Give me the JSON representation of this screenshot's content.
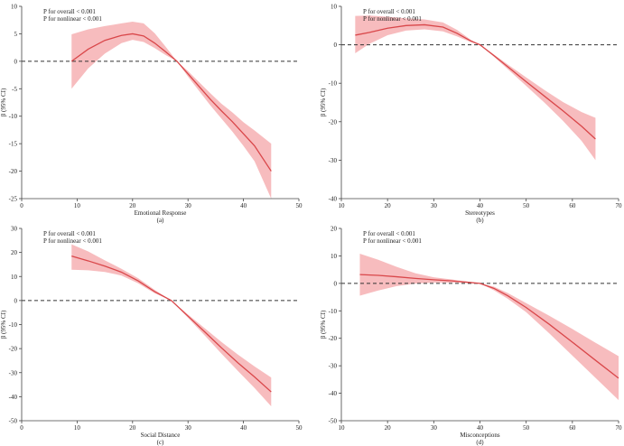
{
  "figure": {
    "description_hidden": false
  },
  "chart_data": [
    {
      "type": "line",
      "panel_label": "(a)",
      "xlabel": "Emotional Response",
      "ylabel": "β (95% CI)",
      "xlim": [
        0,
        50
      ],
      "ylim": [
        -25,
        10
      ],
      "xticks": [
        0,
        10,
        20,
        30,
        40,
        50
      ],
      "yticks": [
        -25,
        -20,
        -15,
        -10,
        -5,
        0,
        5,
        10
      ],
      "reference_line": 0,
      "annotations": [
        "P for overall < 0.001",
        "P for nonlinear < 0.001"
      ],
      "series": [
        {
          "name": "β",
          "x": [
            9,
            12,
            15,
            18,
            20,
            22,
            24,
            26,
            28,
            30,
            32,
            34,
            36,
            38,
            40,
            42,
            45
          ],
          "y": [
            0,
            2.2,
            3.8,
            4.7,
            5.0,
            4.6,
            3.3,
            1.7,
            0,
            -2.3,
            -4.6,
            -6.9,
            -9.0,
            -11.0,
            -13.2,
            -15.4,
            -20.0
          ],
          "lower": [
            -5,
            -1.3,
            1.4,
            3.3,
            3.9,
            3.5,
            2.4,
            1.1,
            0,
            -2.8,
            -5.4,
            -8.0,
            -10.4,
            -12.8,
            -15.4,
            -18.2,
            -25.0
          ],
          "upper": [
            4.9,
            5.8,
            6.4,
            6.9,
            7.2,
            6.9,
            5.1,
            2.6,
            0,
            -1.8,
            -3.8,
            -5.8,
            -7.7,
            -9.3,
            -11.1,
            -12.6,
            -15.0
          ]
        }
      ]
    },
    {
      "type": "line",
      "panel_label": "(b)",
      "xlabel": "Stereotypes",
      "ylabel": "β (95% CI)",
      "xlim": [
        10,
        70
      ],
      "ylim": [
        -40,
        10
      ],
      "xticks": [
        10,
        20,
        30,
        40,
        50,
        60,
        70
      ],
      "yticks": [
        -40,
        -30,
        -20,
        -10,
        0,
        10
      ],
      "reference_line": 0,
      "annotations": [
        "P for overall < 0.001",
        "P for nonlinear < 0.001"
      ],
      "series": [
        {
          "name": "β",
          "x": [
            13,
            16,
            20,
            24,
            28,
            32,
            35,
            38,
            40,
            43,
            46,
            50,
            54,
            58,
            62,
            65
          ],
          "y": [
            2.5,
            3.2,
            4.3,
            5.0,
            5.2,
            4.6,
            3.0,
            1.0,
            0,
            -2.8,
            -5.7,
            -9.6,
            -13.4,
            -17.2,
            -21.2,
            -24.5
          ],
          "lower": [
            -2.2,
            0.2,
            2.5,
            3.7,
            4.0,
            3.5,
            2.2,
            0.7,
            0,
            -3.1,
            -6.3,
            -10.7,
            -15.1,
            -19.8,
            -25.0,
            -30.0
          ],
          "upper": [
            7.5,
            7.6,
            7.3,
            6.9,
            6.6,
            5.8,
            3.9,
            1.3,
            0,
            -2.5,
            -5.1,
            -8.5,
            -11.8,
            -14.9,
            -17.5,
            -19.0
          ]
        }
      ]
    },
    {
      "type": "line",
      "panel_label": "(c)",
      "xlabel": "Social Distance",
      "ylabel": "β (95% CI)",
      "xlim": [
        0,
        50
      ],
      "ylim": [
        -50,
        30
      ],
      "xticks": [
        0,
        10,
        20,
        30,
        40,
        50
      ],
      "yticks": [
        -50,
        -40,
        -30,
        -20,
        -10,
        0,
        10,
        20,
        30
      ],
      "reference_line": 0,
      "annotations": [
        "P for overall < 0.001",
        "P for nonlinear < 0.001"
      ],
      "series": [
        {
          "name": "β",
          "x": [
            9,
            12,
            15,
            18,
            21,
            24,
            27,
            30,
            33,
            36,
            39,
            42,
            45
          ],
          "y": [
            18.5,
            16.5,
            14.3,
            11.8,
            8.2,
            3.7,
            0,
            -6.5,
            -13.0,
            -19.6,
            -25.9,
            -31.8,
            -38.0
          ],
          "lower": [
            12.8,
            12.6,
            11.9,
            10.4,
            7.2,
            3.0,
            0,
            -7.2,
            -14.5,
            -22.0,
            -29.3,
            -36.4,
            -44.0
          ],
          "upper": [
            23.4,
            20.4,
            16.7,
            13.2,
            9.3,
            4.4,
            0,
            -5.8,
            -11.5,
            -17.2,
            -22.5,
            -27.4,
            -32.0
          ]
        }
      ]
    },
    {
      "type": "line",
      "panel_label": "(d)",
      "xlabel": "Misconceptions",
      "ylabel": "β (95% CI)",
      "xlim": [
        10,
        70
      ],
      "ylim": [
        -50,
        20
      ],
      "xticks": [
        10,
        20,
        30,
        40,
        50,
        60,
        70
      ],
      "yticks": [
        -50,
        -40,
        -30,
        -20,
        -10,
        0,
        10,
        20
      ],
      "reference_line": 0,
      "annotations": [
        "P for overall < 0.001",
        "P for nonlinear < 0.001"
      ],
      "series": [
        {
          "name": "β",
          "x": [
            14,
            18,
            22,
            26,
            30,
            34,
            38,
            40,
            43,
            46,
            50,
            55,
            60,
            65,
            70
          ],
          "y": [
            3.2,
            2.9,
            2.4,
            1.8,
            1.3,
            0.9,
            0.3,
            0,
            -1.8,
            -4.5,
            -8.8,
            -14.9,
            -21.4,
            -28.0,
            -34.5
          ],
          "lower": [
            -4.5,
            -2.6,
            -1.0,
            -0.1,
            0.3,
            0.3,
            0.1,
            0,
            -2.5,
            -5.6,
            -10.5,
            -18.2,
            -26.3,
            -34.4,
            -42.5
          ],
          "upper": [
            10.8,
            8.6,
            6.0,
            3.7,
            2.2,
            1.4,
            0.5,
            0,
            -1.2,
            -3.5,
            -7.2,
            -11.8,
            -16.6,
            -21.6,
            -26.5
          ]
        }
      ]
    }
  ]
}
